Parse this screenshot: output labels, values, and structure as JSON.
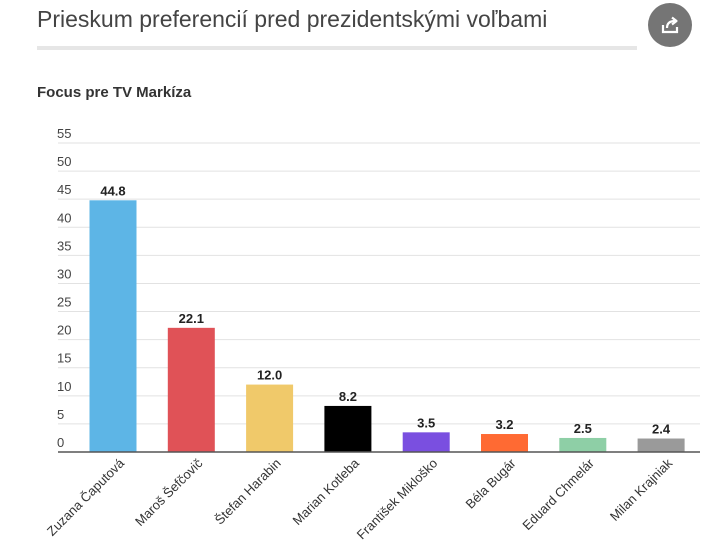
{
  "header": {
    "title": "Prieskum preferencií pred prezidentskými voľbami",
    "share_icon": "share-icon"
  },
  "chart_data": {
    "type": "bar",
    "title": "Focus pre TV Markíza",
    "xlabel": "",
    "ylabel": "",
    "ylim": [
      0,
      55
    ],
    "yticks": [
      0,
      5,
      10,
      15,
      20,
      25,
      30,
      35,
      40,
      45,
      50,
      55
    ],
    "grid": true,
    "legend": "none",
    "categories": [
      "Zuzana Čaputová",
      "Maroš Šefčovič",
      "Štefan Harabin",
      "Marian Kotleba",
      "František Mikloško",
      "Béla Bugár",
      "Eduard Chmelár",
      "Milan Krajniak"
    ],
    "values": [
      44.8,
      22.1,
      12.0,
      8.2,
      3.5,
      3.2,
      2.5,
      2.4
    ],
    "value_labels": [
      "44.8",
      "22.1",
      "12.0",
      "8.2",
      "3.5",
      "3.2",
      "2.5",
      "2.4"
    ],
    "colors": [
      "#5db5e6",
      "#e05257",
      "#f0c96a",
      "#000000",
      "#7a4fe0",
      "#ff6a33",
      "#8ecfa6",
      "#9a9a9a"
    ]
  }
}
